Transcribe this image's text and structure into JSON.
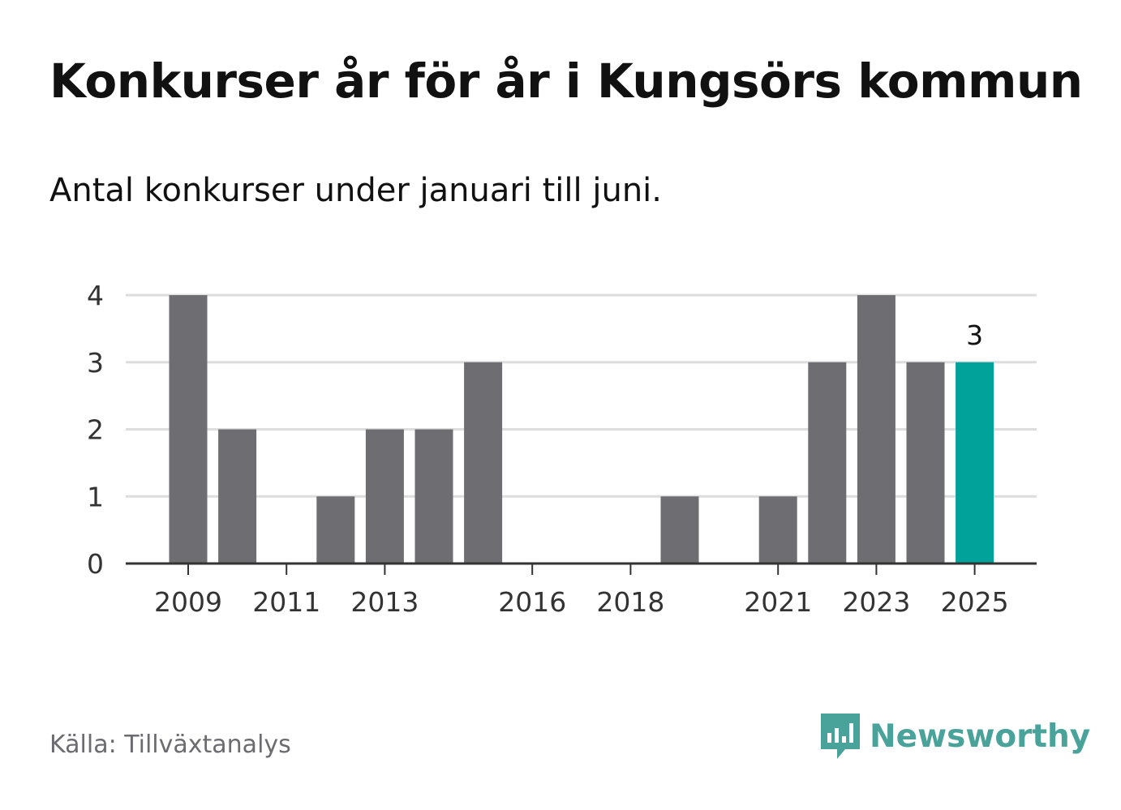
{
  "title": "Konkurser år för år i Kungsörs kommun",
  "subtitle": "Antal konkurser under januari till juni.",
  "source": "Källa: Tillväxtanalys",
  "brand": {
    "name": "Newsworthy",
    "icon": "newsworthy-logo-icon",
    "color": "#4aa39a"
  },
  "colors": {
    "bar": "#6e6d72",
    "highlight": "#00a29a",
    "grid": "#dddddd",
    "axis": "#333333",
    "tick_text": "#333333"
  },
  "chart_data": {
    "type": "bar",
    "title": "Konkurser år för år i Kungsörs kommun",
    "subtitle": "Antal konkurser under januari till juni.",
    "categories": [
      "2009",
      "2010",
      "2011",
      "2012",
      "2013",
      "2014",
      "2015",
      "2016",
      "2017",
      "2018",
      "2019",
      "2020",
      "2021",
      "2022",
      "2023",
      "2024",
      "2025"
    ],
    "values": [
      4,
      2,
      0,
      1,
      2,
      2,
      3,
      0,
      0,
      0,
      1,
      0,
      1,
      3,
      4,
      3,
      3
    ],
    "x_tick_labels": [
      "2009",
      "2011",
      "2013",
      "2016",
      "2018",
      "2021",
      "2023",
      "2025"
    ],
    "y_ticks": [
      0,
      1,
      2,
      3,
      4
    ],
    "ylim": [
      0,
      4
    ],
    "highlight_category": "2025",
    "data_labels": [
      {
        "category": "2025",
        "text": "3"
      }
    ],
    "grid": true,
    "legend": "none",
    "xlabel": "",
    "ylabel": ""
  }
}
